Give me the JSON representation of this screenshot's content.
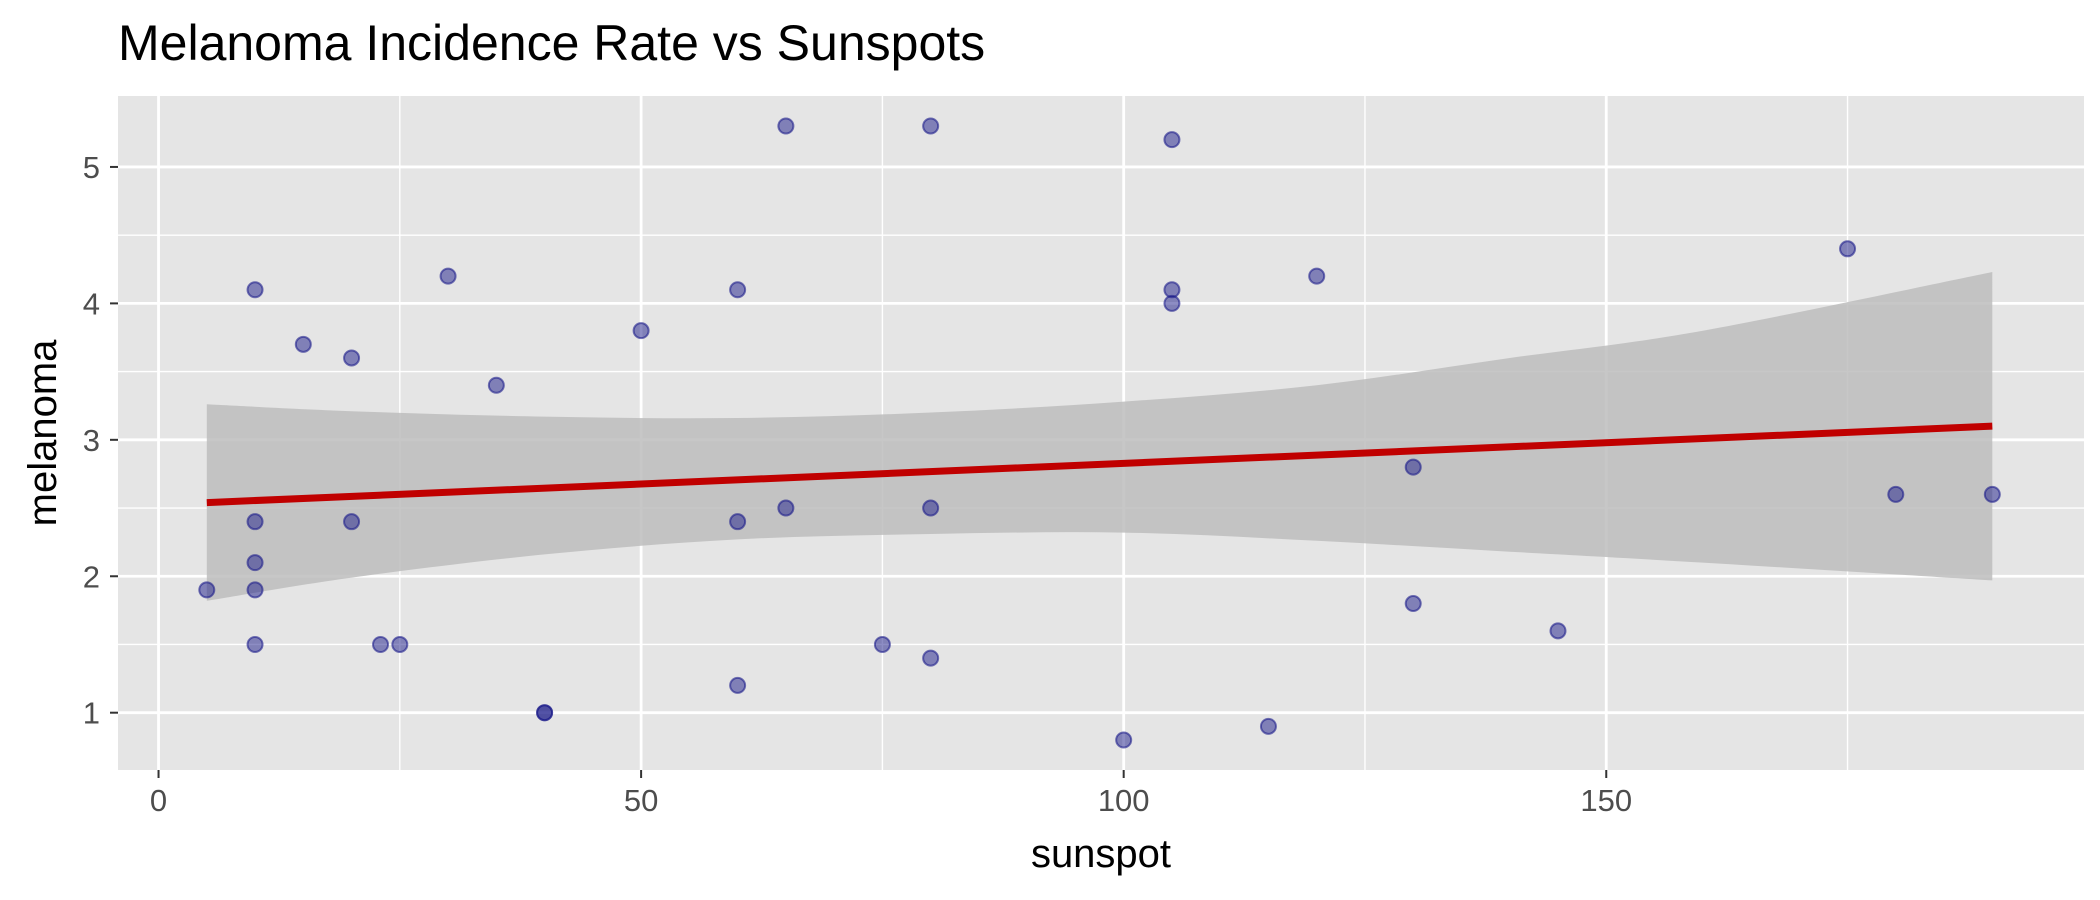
{
  "chart_data": {
    "type": "scatter",
    "title": "Melanoma Incidence Rate vs Sunspots",
    "xlabel": "sunspot",
    "ylabel": "melanoma",
    "xlim": [
      -4.2,
      199.5
    ],
    "ylim": [
      0.58,
      5.52
    ],
    "x_ticks": [
      0,
      50,
      100,
      150
    ],
    "x_minor": [
      25,
      75,
      125,
      175
    ],
    "y_ticks": [
      1,
      2,
      3,
      4,
      5
    ],
    "y_minor": [
      1.5,
      2.5,
      3.5,
      4.5
    ],
    "grid": true,
    "points": [
      {
        "x": 5,
        "y": 1.9
      },
      {
        "x": 10,
        "y": 4.1
      },
      {
        "x": 10,
        "y": 2.4
      },
      {
        "x": 10,
        "y": 2.1
      },
      {
        "x": 10,
        "y": 1.9
      },
      {
        "x": 10,
        "y": 1.5
      },
      {
        "x": 15,
        "y": 3.7
      },
      {
        "x": 20,
        "y": 3.6
      },
      {
        "x": 20,
        "y": 2.4
      },
      {
        "x": 23,
        "y": 1.5
      },
      {
        "x": 25,
        "y": 1.5
      },
      {
        "x": 30,
        "y": 4.2
      },
      {
        "x": 35,
        "y": 3.4
      },
      {
        "x": 40,
        "y": 1.0
      },
      {
        "x": 40,
        "y": 1.0
      },
      {
        "x": 50,
        "y": 3.8
      },
      {
        "x": 60,
        "y": 4.1
      },
      {
        "x": 60,
        "y": 2.4
      },
      {
        "x": 60,
        "y": 1.2
      },
      {
        "x": 65,
        "y": 5.3
      },
      {
        "x": 65,
        "y": 2.5
      },
      {
        "x": 75,
        "y": 1.5
      },
      {
        "x": 80,
        "y": 5.3
      },
      {
        "x": 80,
        "y": 2.5
      },
      {
        "x": 80,
        "y": 1.4
      },
      {
        "x": 100,
        "y": 0.8
      },
      {
        "x": 105,
        "y": 5.2
      },
      {
        "x": 105,
        "y": 4.1
      },
      {
        "x": 105,
        "y": 4.0
      },
      {
        "x": 115,
        "y": 0.9
      },
      {
        "x": 120,
        "y": 4.2
      },
      {
        "x": 130,
        "y": 2.8
      },
      {
        "x": 130,
        "y": 1.8
      },
      {
        "x": 145,
        "y": 1.6
      },
      {
        "x": 175,
        "y": 4.4
      },
      {
        "x": 180,
        "y": 2.6
      },
      {
        "x": 190,
        "y": 2.6
      }
    ],
    "fit_line": {
      "x": [
        5,
        190
      ],
      "y": [
        2.54,
        3.1
      ]
    },
    "confidence_band": {
      "x": [
        5,
        20,
        40,
        60,
        80,
        100,
        120,
        140,
        160,
        190
      ],
      "upper": [
        3.26,
        3.21,
        3.17,
        3.16,
        3.2,
        3.28,
        3.4,
        3.6,
        3.8,
        4.23
      ],
      "lower": [
        1.82,
        1.99,
        2.16,
        2.27,
        2.31,
        2.32,
        2.26,
        2.18,
        2.1,
        1.97
      ]
    },
    "colors": {
      "panel": "#e5e5e5",
      "grid": "#ffffff",
      "point_fill": "#1c1c8a",
      "point_opacity": 0.5,
      "fit_line": "#c00000",
      "band": "#bdbdbd"
    }
  }
}
